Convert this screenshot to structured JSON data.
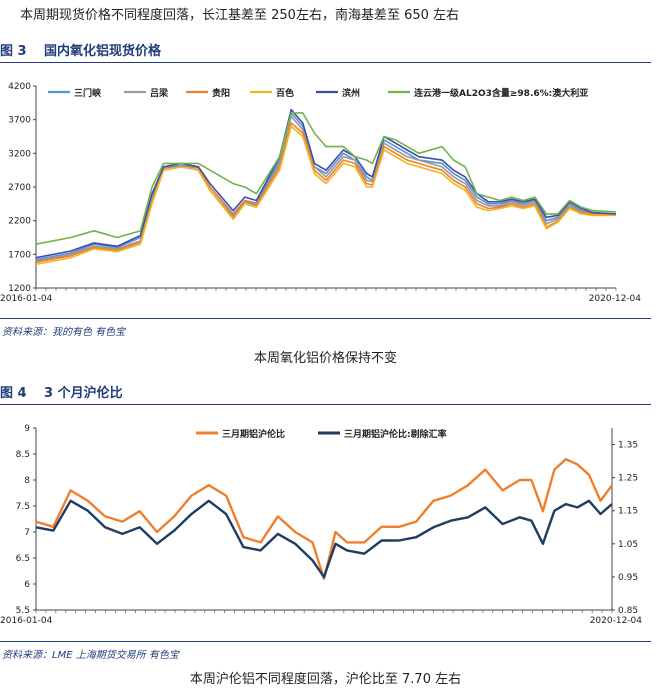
{
  "intro_text": "本周期现货价格不同程度回落，长江基差至 250左右，南海基差至 650 左右",
  "figure3": {
    "label": "图 3",
    "title": "国内氧化铝现货价格",
    "source": "资料来源：我的有色   有色宝",
    "caption": "本周氧化铝价格保持不变"
  },
  "figure4": {
    "label": "图 4",
    "title": "3 个月沪伦比",
    "source": "资料来源：LME   上海期货交易所   有色宝",
    "caption": "本周沪伦铝不同程度回落，沪伦比至 7.70 左右"
  },
  "colors": {
    "sanmenxia": "#5b8fd6",
    "lvliang": "#9b9b9b",
    "guiyang": "#ef7f2b",
    "baise": "#f2b51f",
    "binzhou": "#3b4fa8",
    "lianyungang": "#6fb34b",
    "ratio": "#ee7f2d",
    "ratio_adj": "#1f3d62",
    "title": "#1f3d7a"
  },
  "chart_data": [
    {
      "type": "line",
      "title": "",
      "x_start": "2016-01-04",
      "x_end": "2020-12-04",
      "xlabels": [
        "2016-01-04",
        "2020-12-04"
      ],
      "ylim": [
        1200,
        4200
      ],
      "yticks": [
        1200,
        1700,
        2200,
        2700,
        3200,
        3700,
        4200
      ],
      "grid": false,
      "legend_position": "top",
      "x_frac": [
        0,
        0.06,
        0.1,
        0.14,
        0.18,
        0.2,
        0.22,
        0.25,
        0.28,
        0.3,
        0.34,
        0.36,
        0.38,
        0.42,
        0.44,
        0.46,
        0.48,
        0.5,
        0.53,
        0.55,
        0.57,
        0.58,
        0.6,
        0.62,
        0.64,
        0.66,
        0.7,
        0.72,
        0.74,
        0.76,
        0.78,
        0.8,
        0.82,
        0.84,
        0.86,
        0.88,
        0.9,
        0.92,
        0.94,
        0.96,
        1.0
      ],
      "series": [
        {
          "name": "三门峡",
          "color_key": "sanmenxia",
          "values": [
            1620,
            1720,
            1850,
            1800,
            1950,
            2550,
            2980,
            3020,
            2980,
            2700,
            2300,
            2500,
            2460,
            3100,
            3800,
            3600,
            3000,
            2900,
            3200,
            3100,
            2850,
            2800,
            3400,
            3300,
            3200,
            3100,
            3050,
            2900,
            2800,
            2550,
            2450,
            2450,
            2500,
            2450,
            2500,
            2200,
            2250,
            2450,
            2350,
            2300,
            2300
          ]
        },
        {
          "name": "吕梁",
          "color_key": "lvliang",
          "values": [
            1600,
            1700,
            1820,
            1780,
            1900,
            2500,
            2950,
            3000,
            2950,
            2650,
            2250,
            2480,
            2420,
            3050,
            3750,
            3550,
            3000,
            2850,
            3150,
            3100,
            2800,
            2780,
            3350,
            3250,
            3150,
            3100,
            3000,
            2850,
            2750,
            2500,
            2420,
            2420,
            2480,
            2430,
            2480,
            2150,
            2230,
            2430,
            2330,
            2300,
            2300
          ]
        },
        {
          "name": "贵阳",
          "color_key": "guiyang",
          "values": [
            1580,
            1680,
            1800,
            1760,
            1880,
            2480,
            2980,
            3050,
            2980,
            2700,
            2280,
            2500,
            2440,
            3000,
            3650,
            3500,
            2950,
            2800,
            3100,
            3050,
            2750,
            2730,
            3300,
            3200,
            3100,
            3050,
            2950,
            2800,
            2700,
            2450,
            2380,
            2400,
            2450,
            2400,
            2450,
            2100,
            2200,
            2400,
            2320,
            2300,
            2300
          ]
        },
        {
          "name": "百色",
          "color_key": "baise",
          "values": [
            1550,
            1650,
            1780,
            1740,
            1850,
            2450,
            2950,
            3000,
            2950,
            2650,
            2220,
            2450,
            2400,
            2950,
            3600,
            3450,
            2900,
            2750,
            3050,
            3000,
            2700,
            2700,
            3250,
            3150,
            3050,
            3000,
            2900,
            2750,
            2650,
            2400,
            2350,
            2380,
            2420,
            2380,
            2420,
            2080,
            2180,
            2380,
            2300,
            2280,
            2280
          ]
        },
        {
          "name": "滨州",
          "color_key": "binzhou",
          "values": [
            1650,
            1750,
            1870,
            1820,
            1980,
            2600,
            3000,
            3050,
            3000,
            2750,
            2350,
            2550,
            2500,
            3150,
            3850,
            3650,
            3050,
            2950,
            3250,
            3150,
            2900,
            2850,
            3450,
            3350,
            3250,
            3150,
            3100,
            2950,
            2850,
            2600,
            2480,
            2480,
            2520,
            2480,
            2520,
            2250,
            2280,
            2480,
            2380,
            2320,
            2300
          ]
        },
        {
          "name": "连云港一级AL2O3含量≥98.6%:澳大利亚",
          "color_key": "lianyungang",
          "values": [
            1850,
            1950,
            2050,
            1950,
            2050,
            2700,
            3050,
            3050,
            3050,
            2950,
            2750,
            2700,
            2600,
            3150,
            3800,
            3800,
            3500,
            3300,
            3300,
            3150,
            3100,
            3050,
            3450,
            3400,
            3300,
            3200,
            3300,
            3100,
            3000,
            2600,
            2550,
            2500,
            2550,
            2500,
            2550,
            2300,
            2300,
            2500,
            2400,
            2350,
            2330
          ]
        }
      ]
    },
    {
      "type": "line",
      "title": "",
      "x_start": "2016-01-04",
      "x_end": "2020-12-04",
      "xlabels": [
        "2016-01-04",
        "2020-12-04"
      ],
      "ylim_left": [
        5.5,
        9
      ],
      "yticks_left": [
        5.5,
        6,
        6.5,
        7,
        7.5,
        8,
        8.5,
        9
      ],
      "ylim_right": [
        0.85,
        1.4
      ],
      "yticks_right": [
        0.85,
        0.95,
        1.05,
        1.15,
        1.25,
        1.35
      ],
      "grid": false,
      "legend_position": "top",
      "x_frac": [
        0,
        0.03,
        0.06,
        0.09,
        0.12,
        0.15,
        0.18,
        0.21,
        0.24,
        0.27,
        0.3,
        0.33,
        0.36,
        0.39,
        0.42,
        0.45,
        0.48,
        0.5,
        0.52,
        0.54,
        0.57,
        0.6,
        0.63,
        0.66,
        0.69,
        0.72,
        0.75,
        0.78,
        0.81,
        0.84,
        0.86,
        0.88,
        0.9,
        0.92,
        0.94,
        0.96,
        0.98,
        1.0
      ],
      "series": [
        {
          "name": "三月期铝沪伦比",
          "color_key": "ratio",
          "axis": "left",
          "values": [
            7.2,
            7.1,
            7.8,
            7.6,
            7.3,
            7.2,
            7.4,
            7.0,
            7.3,
            7.7,
            7.9,
            7.7,
            6.9,
            6.8,
            7.3,
            7.0,
            6.8,
            6.1,
            7.0,
            6.8,
            6.8,
            7.1,
            7.1,
            7.2,
            7.6,
            7.7,
            7.9,
            8.2,
            7.8,
            8.0,
            8.0,
            7.4,
            8.2,
            8.4,
            8.3,
            8.1,
            7.6,
            7.9
          ]
        },
        {
          "name": "三月期铝沪伦比:剔除汇率",
          "color_key": "ratio_adj",
          "axis": "right",
          "values": [
            1.1,
            1.09,
            1.18,
            1.15,
            1.1,
            1.08,
            1.1,
            1.05,
            1.09,
            1.14,
            1.18,
            1.14,
            1.04,
            1.03,
            1.08,
            1.05,
            1.0,
            0.95,
            1.05,
            1.03,
            1.02,
            1.06,
            1.06,
            1.07,
            1.1,
            1.12,
            1.13,
            1.16,
            1.11,
            1.13,
            1.12,
            1.05,
            1.15,
            1.17,
            1.16,
            1.18,
            1.14,
            1.17
          ]
        }
      ]
    }
  ]
}
